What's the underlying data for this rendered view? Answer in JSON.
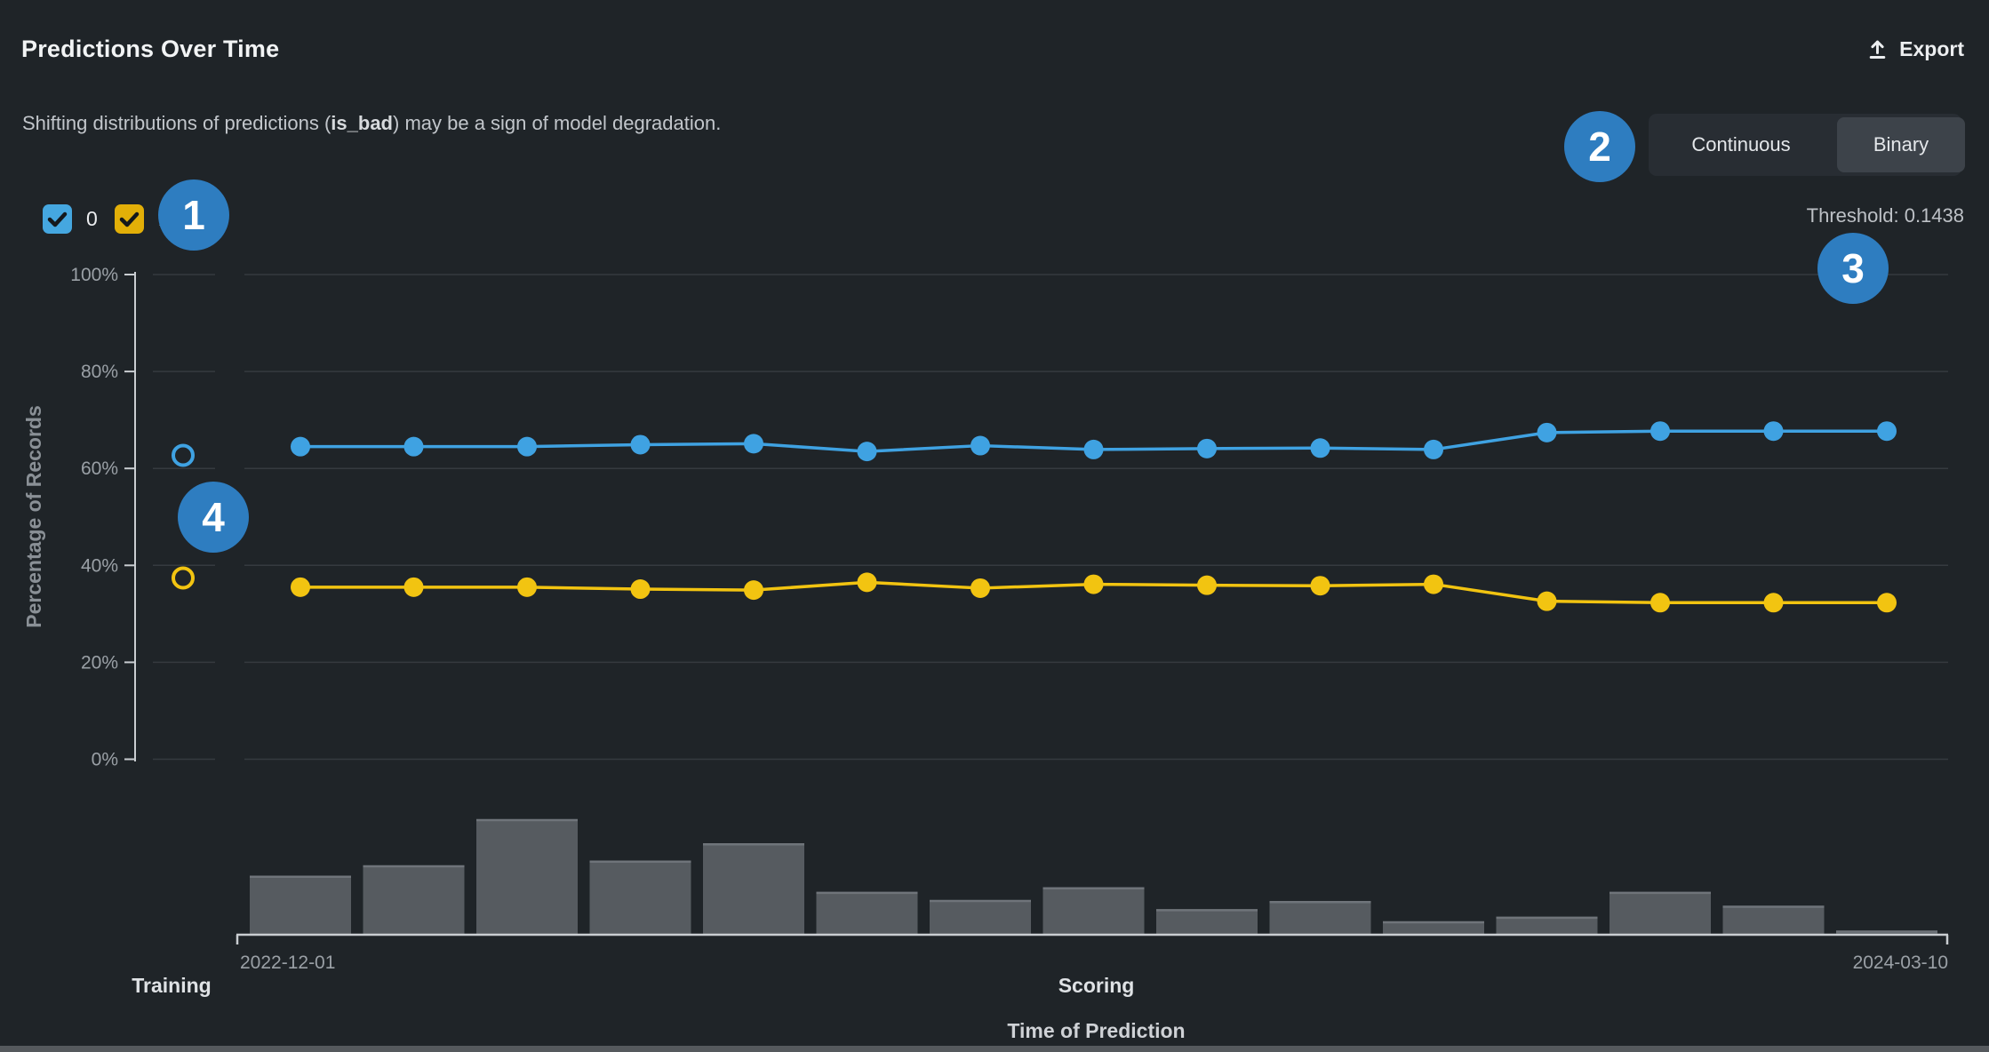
{
  "header": {
    "title": "Predictions Over Time",
    "export_label": "Export"
  },
  "subtitle": {
    "prefix": "Shifting distributions of predictions (",
    "highlight": "is_bad",
    "suffix": ") may be a sign of model degradation."
  },
  "controls": {
    "toggle_options": [
      "Continuous",
      "Binary"
    ],
    "selected_option": "Binary",
    "threshold_text": "Threshold: 0.1438"
  },
  "legend": {
    "items": [
      {
        "label": "0",
        "color": "#45A7E0",
        "checked": true
      },
      {
        "label": "1",
        "color": "#E2AF08",
        "checked": true
      }
    ]
  },
  "annotations": [
    {
      "number": "1"
    },
    {
      "number": "2"
    },
    {
      "number": "3"
    },
    {
      "number": "4"
    }
  ],
  "chart_data": {
    "type": "line",
    "ylabel": "Percentage of Records",
    "xlabel": "Time of Prediction",
    "section_labels": [
      "Training",
      "Scoring"
    ],
    "x_tick_labels": [
      "2022-12-01",
      "2024-03-10"
    ],
    "ylim": [
      0,
      100
    ],
    "y_tick_labels": [
      "0%",
      "20%",
      "40%",
      "60%",
      "80%",
      "100%"
    ],
    "y_tick_values": [
      0,
      20,
      40,
      60,
      80,
      100
    ],
    "grid": true,
    "series": [
      {
        "name": "0",
        "color": "#3FA2E2",
        "training_value": 62.7,
        "values": [
          64.5,
          64.5,
          64.5,
          64.9,
          65.1,
          63.5,
          64.7,
          63.9,
          64.1,
          64.2,
          63.9,
          67.4,
          67.7,
          67.7,
          67.7
        ]
      },
      {
        "name": "1",
        "color": "#F2C411",
        "training_value": 37.4,
        "values": [
          35.5,
          35.5,
          35.5,
          35.1,
          34.9,
          36.5,
          35.3,
          36.1,
          35.9,
          35.8,
          36.1,
          32.6,
          32.3,
          32.3,
          32.3
        ]
      }
    ],
    "volume_bars": {
      "color": "#565B60",
      "relative_heights": [
        0.51,
        0.6,
        1.0,
        0.64,
        0.79,
        0.37,
        0.3,
        0.41,
        0.22,
        0.29,
        0.115,
        0.155,
        0.37,
        0.25,
        0.035
      ]
    }
  }
}
